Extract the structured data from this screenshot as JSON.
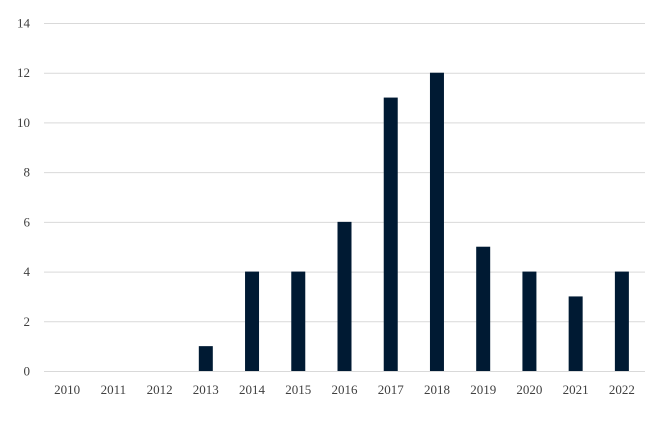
{
  "chart_data": {
    "type": "bar",
    "title": "",
    "xlabel": "",
    "ylabel": "",
    "categories": [
      "2010",
      "2011",
      "2012",
      "2013",
      "2014",
      "2015",
      "2016",
      "2017",
      "2018",
      "2019",
      "2020",
      "2021",
      "2022"
    ],
    "values": [
      0,
      0,
      0,
      1,
      4,
      4,
      6,
      11,
      12,
      5,
      4,
      3,
      4
    ],
    "ylim": [
      0,
      14
    ],
    "yticks": [
      0,
      2,
      4,
      6,
      8,
      10,
      12,
      14
    ],
    "grid": true,
    "legend": "none",
    "bar_color": "#001a33",
    "grid_color": "#d9d9d9",
    "text_color": "#404040"
  }
}
